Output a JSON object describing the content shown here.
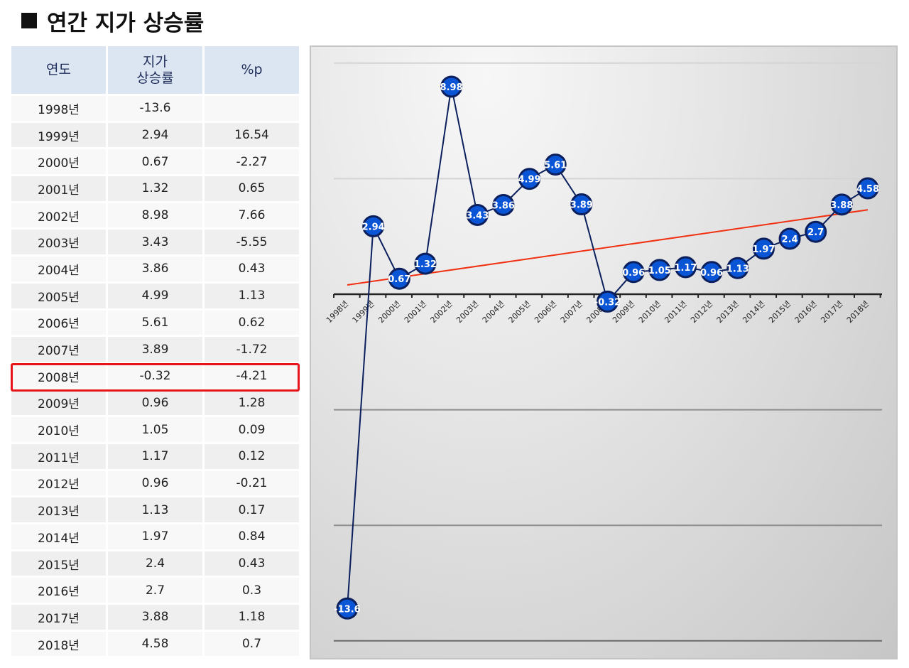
{
  "header": {
    "title": "연간 지가 상승률",
    "bullet_icon": "black-square"
  },
  "table": {
    "columns": [
      "연도",
      "지가 상승률",
      "%p"
    ],
    "column_lines": [
      [
        "연도"
      ],
      [
        "지가",
        "상승률"
      ],
      [
        "%p"
      ]
    ],
    "rows": [
      {
        "year": "1998년",
        "rate": "-13.6",
        "pp": ""
      },
      {
        "year": "1999년",
        "rate": "2.94",
        "pp": "16.54"
      },
      {
        "year": "2000년",
        "rate": "0.67",
        "pp": "-2.27"
      },
      {
        "year": "2001년",
        "rate": "1.32",
        "pp": "0.65"
      },
      {
        "year": "2002년",
        "rate": "8.98",
        "pp": "7.66"
      },
      {
        "year": "2003년",
        "rate": "3.43",
        "pp": "-5.55"
      },
      {
        "year": "2004년",
        "rate": "3.86",
        "pp": "0.43"
      },
      {
        "year": "2005년",
        "rate": "4.99",
        "pp": "1.13"
      },
      {
        "year": "2006년",
        "rate": "5.61",
        "pp": "0.62"
      },
      {
        "year": "2007년",
        "rate": "3.89",
        "pp": "-1.72"
      },
      {
        "year": "2008년",
        "rate": "-0.32",
        "pp": "-4.21"
      },
      {
        "year": "2009년",
        "rate": "0.96",
        "pp": "1.28"
      },
      {
        "year": "2010년",
        "rate": "1.05",
        "pp": "0.09"
      },
      {
        "year": "2011년",
        "rate": "1.17",
        "pp": "0.12"
      },
      {
        "year": "2012년",
        "rate": "0.96",
        "pp": "-0.21"
      },
      {
        "year": "2013년",
        "rate": "1.13",
        "pp": "0.17"
      },
      {
        "year": "2014년",
        "rate": "1.97",
        "pp": "0.84"
      },
      {
        "year": "2015년",
        "rate": "2.4",
        "pp": "0.43"
      },
      {
        "year": "2016년",
        "rate": "2.7",
        "pp": "0.3"
      },
      {
        "year": "2017년",
        "rate": "3.88",
        "pp": "1.18"
      },
      {
        "year": "2018년",
        "rate": "4.58",
        "pp": "0.7"
      }
    ],
    "highlighted_row": "2008년",
    "highlight_color": "#e8141b"
  },
  "colors": {
    "header_bg": "#dce6f2",
    "header_text": "#1f2d5a",
    "marker_fill": "#0a55d6",
    "marker_stroke": "#0b1f5c",
    "line": "#0b1f5c",
    "trendline": "#f03010"
  },
  "chart_data": {
    "type": "line",
    "title": "",
    "xlabel": "",
    "ylabel": "",
    "x": [
      "1998년",
      "1999년",
      "2000년",
      "2001년",
      "2002년",
      "2003년",
      "2004년",
      "2005년",
      "2006년",
      "2007년",
      "2008년",
      "2009년",
      "2010년",
      "2011년",
      "2012년",
      "2013년",
      "2014년",
      "2015년",
      "2016년",
      "2017년",
      "2018년"
    ],
    "series": [
      {
        "name": "지가 상승률",
        "values": [
          -13.6,
          2.94,
          0.67,
          1.32,
          8.98,
          3.43,
          3.86,
          4.99,
          5.61,
          3.89,
          -0.32,
          0.96,
          1.05,
          1.17,
          0.96,
          1.13,
          1.97,
          2.4,
          2.7,
          3.88,
          4.58
        ],
        "data_labels": true
      },
      {
        "name": "linear trendline",
        "type": "trendline",
        "values": [
          0.4,
          3.65
        ]
      }
    ],
    "ylim": [
      -15,
      10
    ],
    "y_gridlines": [
      10,
      5,
      0,
      -5,
      -10,
      -15
    ],
    "y_tick_labels_shown": false,
    "grid": true,
    "legend": "none"
  }
}
